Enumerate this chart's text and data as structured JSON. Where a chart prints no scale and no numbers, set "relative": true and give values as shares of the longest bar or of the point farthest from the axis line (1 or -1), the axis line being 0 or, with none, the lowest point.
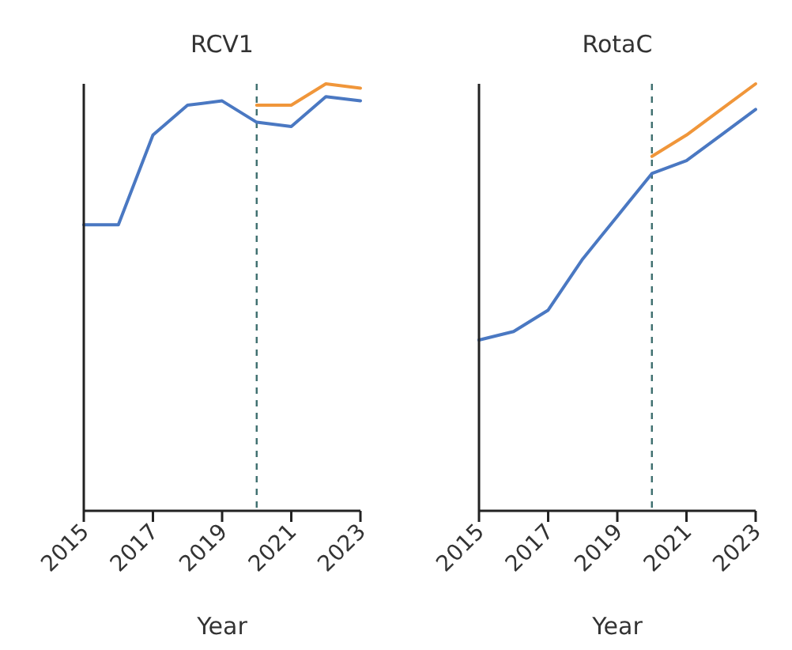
{
  "chart_data": [
    {
      "type": "line",
      "title": "RCV1",
      "xlabel": "Year",
      "relative": true,
      "xlim": [
        2015,
        2023
      ],
      "xticks": [
        2015,
        2017,
        2019,
        2021,
        2023
      ],
      "ref_lines": [
        {
          "axis": "x",
          "value": 2020,
          "color": "#3d6e6e",
          "line_style": "dashed"
        }
      ],
      "series": [
        {
          "color": "#4a78c2",
          "x": [
            2015,
            2016,
            2017,
            2018,
            2019,
            2020,
            2021,
            2022,
            2023
          ],
          "values": [
            0.67,
            0.67,
            0.88,
            0.95,
            0.96,
            0.91,
            0.9,
            0.97,
            0.96
          ]
        },
        {
          "color": "#f0963a",
          "x": [
            2020,
            2021,
            2022,
            2023
          ],
          "values": [
            0.95,
            0.95,
            1,
            0.99
          ]
        }
      ]
    },
    {
      "type": "line",
      "title": "RotaC",
      "xlabel": "Year",
      "relative": true,
      "xlim": [
        2015,
        2023
      ],
      "xticks": [
        2015,
        2017,
        2019,
        2021,
        2023
      ],
      "ref_lines": [
        {
          "axis": "x",
          "value": 2020,
          "color": "#3d6e6e",
          "line_style": "dashed"
        }
      ],
      "series": [
        {
          "color": "#4a78c2",
          "x": [
            2015,
            2016,
            2017,
            2018,
            2019,
            2020,
            2021,
            2022,
            2023
          ],
          "values": [
            0.4,
            0.42,
            0.47,
            0.59,
            0.69,
            0.79,
            0.82,
            0.88,
            0.94
          ]
        },
        {
          "color": "#f0963a",
          "x": [
            2020,
            2021,
            2022,
            2023
          ],
          "values": [
            0.83,
            0.88,
            0.94,
            1
          ]
        }
      ]
    }
  ]
}
